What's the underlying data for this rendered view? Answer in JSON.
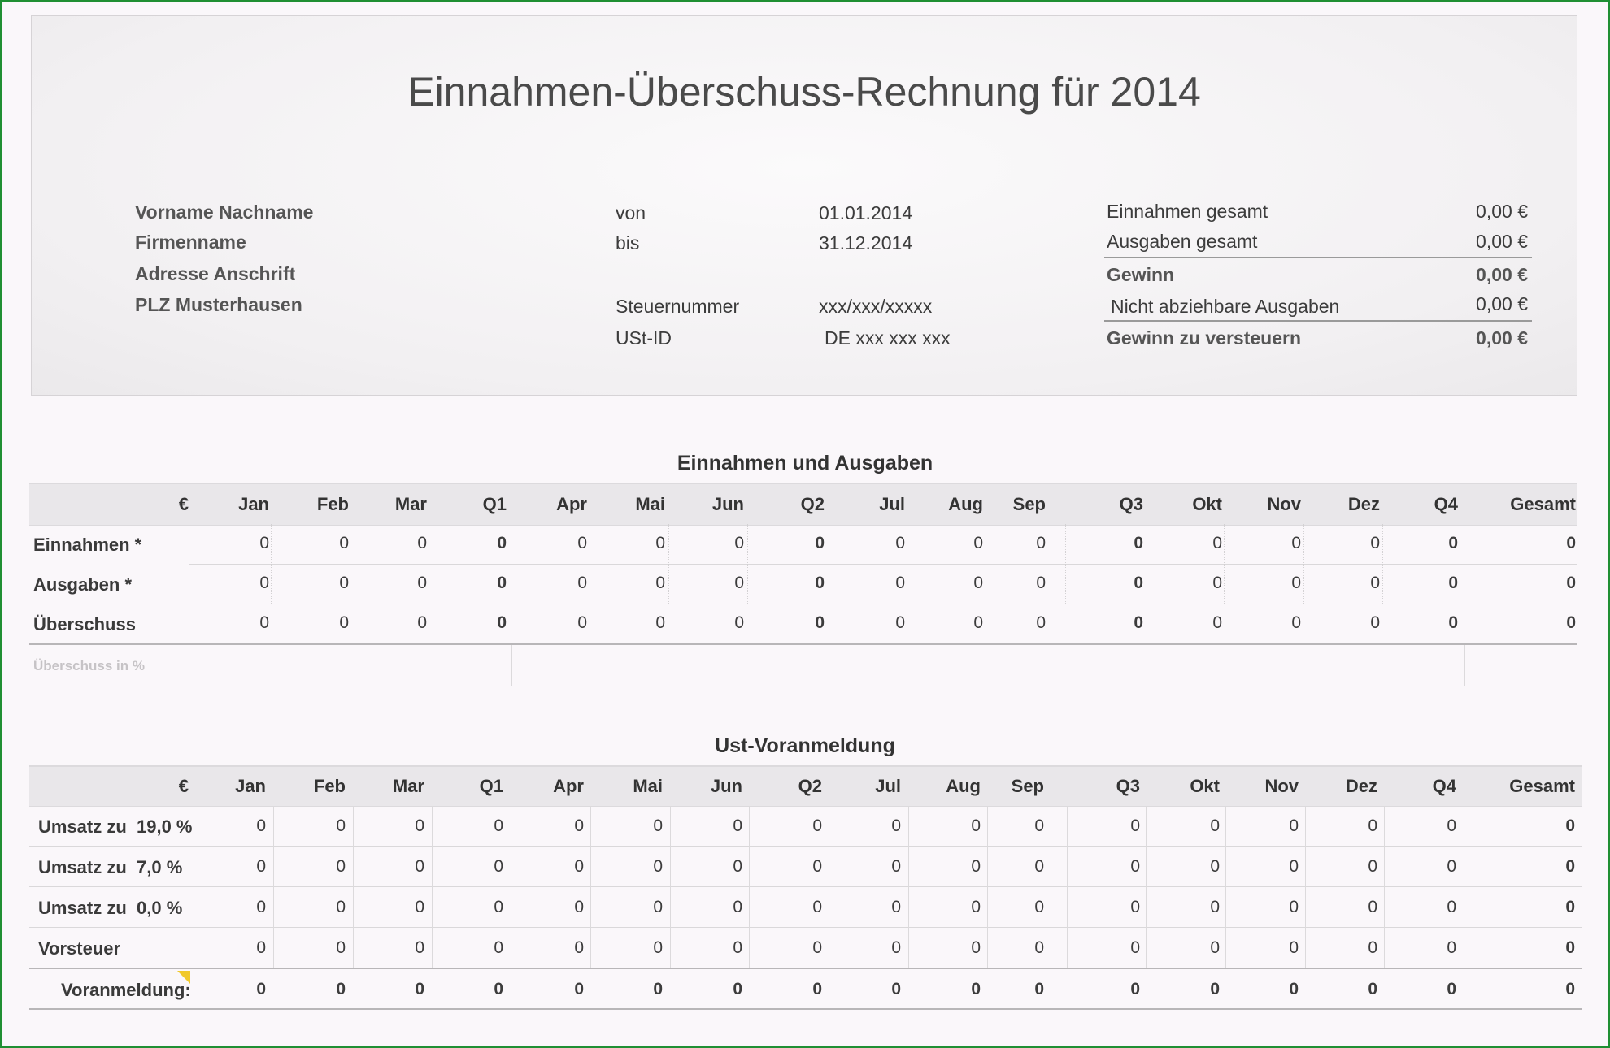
{
  "title": "Einnahmen-Überschuss-Rechnung für 2014",
  "address": [
    "Vorname Nachname",
    "Firmenname",
    "Adresse Anschrift",
    "PLZ Musterhausen"
  ],
  "period": {
    "von_label": "von",
    "von_value": "01.01.2014",
    "bis_label": "bis",
    "bis_value": "31.12.2014",
    "steuer_label": "Steuernummer",
    "steuer_value": "xxx/xxx/xxxxx",
    "ust_label": "USt-ID",
    "ust_value": "DE xxx xxx xxx"
  },
  "summary": {
    "einnahmen_label": "Einnahmen gesamt",
    "einnahmen_value": "0,00 €",
    "ausgaben_label": "Ausgaben gesamt",
    "ausgaben_value": "0,00 €",
    "gewinn_label": "Gewinn",
    "gewinn_value": "0,00 €",
    "nicht_label": "Nicht abziehbare Ausgaben",
    "nicht_value": "0,00 €",
    "zu_versteuern_label": "Gewinn zu versteuern",
    "zu_versteuern_value": "0,00 €"
  },
  "table1": {
    "title": "Einnahmen und Ausgaben",
    "headers": [
      "€",
      "Jan",
      "Feb",
      "Mar",
      "Q1",
      "Apr",
      "Mai",
      "Jun",
      "Q2",
      "Jul",
      "Aug",
      "Sep",
      "Q3",
      "Okt",
      "Nov",
      "Dez",
      "Q4",
      "Gesamt"
    ],
    "rows": [
      {
        "label": "Einnahmen *",
        "values": [
          "0",
          "0",
          "0",
          "0",
          "0",
          "0",
          "0",
          "0",
          "0",
          "0",
          "0",
          "0",
          "0",
          "0",
          "0",
          "0",
          "0"
        ]
      },
      {
        "label": "Ausgaben *",
        "values": [
          "0",
          "0",
          "0",
          "0",
          "0",
          "0",
          "0",
          "0",
          "0",
          "0",
          "0",
          "0",
          "0",
          "0",
          "0",
          "0",
          "0"
        ]
      },
      {
        "label": "Überschuss",
        "values": [
          "0",
          "0",
          "0",
          "0",
          "0",
          "0",
          "0",
          "0",
          "0",
          "0",
          "0",
          "0",
          "0",
          "0",
          "0",
          "0",
          "0"
        ]
      }
    ],
    "footer_label": "Überschuss in %"
  },
  "table2": {
    "title": "Ust-Voranmeldung",
    "headers": [
      "€",
      "Jan",
      "Feb",
      "Mar",
      "Q1",
      "Apr",
      "Mai",
      "Jun",
      "Q2",
      "Jul",
      "Aug",
      "Sep",
      "Q3",
      "Okt",
      "Nov",
      "Dez",
      "Q4",
      "Gesamt"
    ],
    "rows": [
      {
        "label": "Umsatz zu",
        "rate": "19,0 %",
        "values": [
          "0",
          "0",
          "0",
          "0",
          "0",
          "0",
          "0",
          "0",
          "0",
          "0",
          "0",
          "0",
          "0",
          "0",
          "0",
          "0",
          "0"
        ]
      },
      {
        "label": "Umsatz zu",
        "rate": "7,0 %",
        "values": [
          "0",
          "0",
          "0",
          "0",
          "0",
          "0",
          "0",
          "0",
          "0",
          "0",
          "0",
          "0",
          "0",
          "0",
          "0",
          "0",
          "0"
        ]
      },
      {
        "label": "Umsatz zu",
        "rate": "0,0 %",
        "values": [
          "0",
          "0",
          "0",
          "0",
          "0",
          "0",
          "0",
          "0",
          "0",
          "0",
          "0",
          "0",
          "0",
          "0",
          "0",
          "0",
          "0"
        ]
      },
      {
        "label": "Vorsteuer",
        "rate": "",
        "values": [
          "0",
          "0",
          "0",
          "0",
          "0",
          "0",
          "0",
          "0",
          "0",
          "0",
          "0",
          "0",
          "0",
          "0",
          "0",
          "0",
          "0"
        ]
      }
    ],
    "total": {
      "label": "Voranmeldung:",
      "values": [
        "0",
        "0",
        "0",
        "0",
        "0",
        "0",
        "0",
        "0",
        "0",
        "0",
        "0",
        "0",
        "0",
        "0",
        "0",
        "0",
        "0"
      ]
    }
  }
}
